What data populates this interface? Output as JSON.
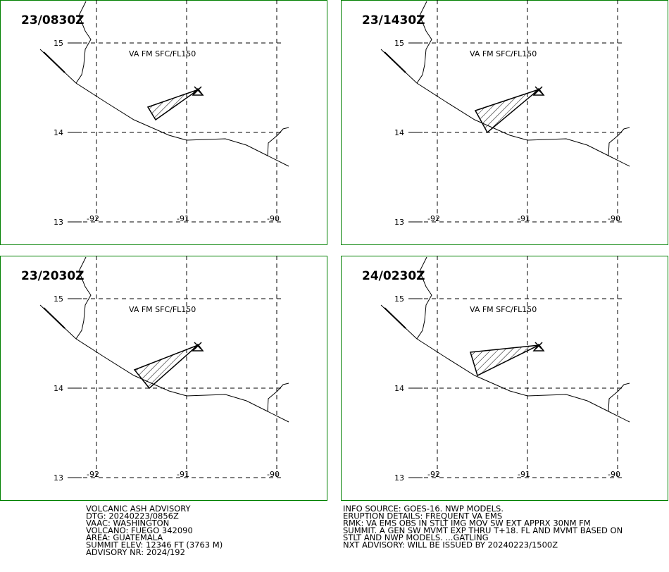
{
  "panels": [
    {
      "time": "23/0830Z",
      "ash_label": "VA FM SFC/FL150",
      "lat_labels": [
        "15",
        "14",
        "13"
      ],
      "lon_labels": [
        "-92",
        "-91",
        "-90"
      ]
    },
    {
      "time": "23/1430Z",
      "ash_label": "VA FM SFC/FL150",
      "lat_labels": [
        "15",
        "14",
        "13"
      ],
      "lon_labels": [
        "-92",
        "-91",
        "-90"
      ]
    },
    {
      "time": "23/2030Z",
      "ash_label": "VA FM SFC/FL150",
      "lat_labels": [
        "15",
        "14",
        "13"
      ],
      "lon_labels": [
        "-92",
        "-91",
        "-90"
      ]
    },
    {
      "time": "24/0230Z",
      "ash_label": "VA FM SFC/FL150",
      "lat_labels": [
        "15",
        "14",
        "13"
      ],
      "lon_labels": [
        "-92",
        "-91",
        "-90"
      ]
    }
  ],
  "advisory": {
    "left": [
      "VOLCANIC ASH ADVISORY",
      "DTG: 20240223/0856Z",
      "VAAC: WASHINGTON",
      "VOLCANO: FUEGO 342090",
      "AREA: GUATEMALA",
      "SUMMIT ELEV: 12346 FT (3763 M)",
      "ADVISORY NR: 2024/192"
    ],
    "right": [
      "INFO SOURCE: GOES-16. NWP MODELS.",
      "ERUPTION DETAILS: FREQUENT VA EMS",
      "RMK: VA EMS OBS IN STLT IMG MOV SW EXT APPRX 30NM FM",
      "SUMMIT. A GEN SW MVMT EXP THRU T+18. FL AND MVMT BASED ON",
      "STLT AND NWP MODELS. ...GATLING",
      "NXT ADVISORY: WILL BE ISSUED BY 20240223/1500Z"
    ]
  }
}
